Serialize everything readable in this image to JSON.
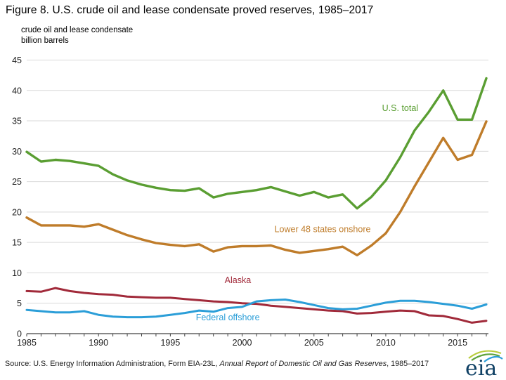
{
  "header": {
    "title": "Figure 8. U.S. crude oil and lease condensate proved reserves, 1985–2017"
  },
  "axis_note": {
    "line1": "crude oil and lease condensate",
    "line2": "billion barrels"
  },
  "styles": {
    "gridline_color": "#d9d9d9",
    "axis_color": "#404040",
    "text_color": "#1f1f1f",
    "logo_text_color": "#0d3f63",
    "logo_arc_colors": [
      "#b8cc3b",
      "#5fa33c",
      "#2b9ed8"
    ]
  },
  "chart_data": {
    "type": "line",
    "title": "Figure 8. U.S. crude oil and lease condensate proved reserves, 1985–2017",
    "xlabel": "",
    "ylabel": "crude oil and lease condensate, billion barrels",
    "ylim": [
      0,
      45
    ],
    "ytick_step": 5,
    "grid": true,
    "legend_position": "inline-labels",
    "x": [
      1985,
      1986,
      1987,
      1988,
      1989,
      1990,
      1991,
      1992,
      1993,
      1994,
      1995,
      1996,
      1997,
      1998,
      1999,
      2000,
      2001,
      2002,
      2003,
      2004,
      2005,
      2006,
      2007,
      2008,
      2009,
      2010,
      2011,
      2012,
      2013,
      2014,
      2015,
      2016,
      2017
    ],
    "xticks_labeled": [
      1985,
      1990,
      1995,
      2000,
      2005,
      2010,
      2015
    ],
    "series": [
      {
        "name": "U.S. total",
        "color": "#5a9e32",
        "line_width": 3.4,
        "label_at": {
          "x": 2011.0,
          "y": 36.6
        },
        "values": [
          29.9,
          28.3,
          28.6,
          28.4,
          28.0,
          27.6,
          26.2,
          25.2,
          24.5,
          24.0,
          23.6,
          23.5,
          23.9,
          22.4,
          23.0,
          23.3,
          23.6,
          24.1,
          23.4,
          22.7,
          23.3,
          22.4,
          22.9,
          20.6,
          22.5,
          25.2,
          29.0,
          33.4,
          36.5,
          40.0,
          35.2,
          35.2,
          42.0
        ]
      },
      {
        "name": "Lower 48 states onshore",
        "color": "#bf7c2a",
        "line_width": 3.4,
        "label_at": {
          "x": 2005.6,
          "y": 16.7
        },
        "values": [
          19.1,
          17.8,
          17.8,
          17.8,
          17.6,
          18.0,
          17.1,
          16.2,
          15.5,
          14.9,
          14.6,
          14.4,
          14.7,
          13.5,
          14.2,
          14.4,
          14.4,
          14.5,
          13.8,
          13.3,
          13.6,
          13.9,
          14.3,
          12.9,
          14.5,
          16.5,
          20.0,
          24.2,
          28.2,
          32.2,
          28.6,
          29.4,
          34.9
        ]
      },
      {
        "name": "Alaska",
        "color": "#a12a3a",
        "line_width": 3.0,
        "label_at": {
          "x": 1999.7,
          "y": 8.3
        },
        "values": [
          7.0,
          6.9,
          7.5,
          7.0,
          6.7,
          6.5,
          6.4,
          6.1,
          6.0,
          5.9,
          5.9,
          5.7,
          5.5,
          5.3,
          5.2,
          5.0,
          4.9,
          4.6,
          4.4,
          4.2,
          4.0,
          3.8,
          3.7,
          3.3,
          3.4,
          3.6,
          3.8,
          3.7,
          3.0,
          2.9,
          2.4,
          1.8,
          2.1
        ]
      },
      {
        "name": "Federal offshore",
        "color": "#2b9ed8",
        "line_width": 3.0,
        "label_at": {
          "x": 1999.0,
          "y": 2.2
        },
        "values": [
          3.9,
          3.7,
          3.5,
          3.5,
          3.7,
          3.1,
          2.8,
          2.7,
          2.7,
          2.8,
          3.1,
          3.4,
          3.8,
          3.6,
          4.2,
          4.4,
          5.3,
          5.5,
          5.6,
          5.2,
          4.7,
          4.2,
          4.0,
          4.1,
          4.6,
          5.1,
          5.4,
          5.4,
          5.2,
          4.9,
          4.6,
          4.1,
          4.8
        ]
      }
    ]
  },
  "footer": {
    "source_prefix": "Source: U.S. Energy Information Administration, Form EIA-23L, ",
    "source_italic": "Annual Report of Domestic Oil and Gas Reserves",
    "source_suffix": ", 1985–2017",
    "logo_text": "eia"
  }
}
